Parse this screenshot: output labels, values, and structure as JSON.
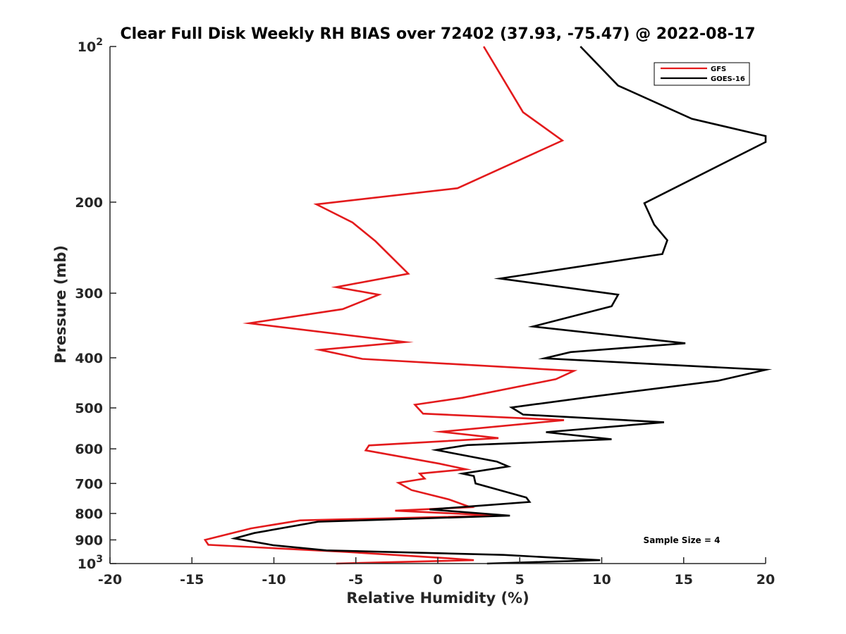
{
  "chart_data": {
    "type": "line",
    "title": "Clear Full Disk Weekly RH BIAS over 72402 (37.93, -75.47) @ 2022-08-17",
    "xlabel": "Relative Humidity (%)",
    "ylabel": "Pressure (mb)",
    "xlim": [
      -20,
      20
    ],
    "ylim": [
      100,
      1000
    ],
    "yscale": "log",
    "y_reversed": true,
    "x_ticks": [
      -20,
      -15,
      -10,
      -5,
      0,
      5,
      10,
      15,
      20
    ],
    "x_tick_labels": [
      "-20",
      "-15",
      "-10",
      "-5",
      "0",
      "5",
      "10",
      "15",
      "20"
    ],
    "y_ticks": [
      100,
      200,
      300,
      400,
      500,
      600,
      700,
      800,
      900,
      1000
    ],
    "y_tick_labels": [
      {
        "base": "10",
        "exp": "2"
      },
      {
        "base": "200",
        "exp": ""
      },
      {
        "base": "300",
        "exp": ""
      },
      {
        "base": "400",
        "exp": ""
      },
      {
        "base": "500",
        "exp": ""
      },
      {
        "base": "600",
        "exp": ""
      },
      {
        "base": "700",
        "exp": ""
      },
      {
        "base": "800",
        "exp": ""
      },
      {
        "base": "900",
        "exp": ""
      },
      {
        "base": "10",
        "exp": "3"
      }
    ],
    "grid": false,
    "legend_position": "top-right",
    "annotation": "Sample Size = 4",
    "series": [
      {
        "name": "GFS",
        "color": "#e31a1c",
        "points": [
          [
            2.8,
            100
          ],
          [
            5.2,
            134
          ],
          [
            7.6,
            152
          ],
          [
            1.2,
            188
          ],
          [
            -7.4,
            202
          ],
          [
            -5.2,
            219
          ],
          [
            -3.8,
            238
          ],
          [
            -1.8,
            275
          ],
          [
            -6.2,
            292
          ],
          [
            -3.6,
            302
          ],
          [
            -5.8,
            322
          ],
          [
            -11.5,
            343
          ],
          [
            -2.0,
            373
          ],
          [
            -7.2,
            386
          ],
          [
            -4.6,
            402
          ],
          [
            8.3,
            424
          ],
          [
            7.2,
            440
          ],
          [
            1.5,
            478
          ],
          [
            -1.4,
            493
          ],
          [
            -0.9,
            513
          ],
          [
            7.7,
            528
          ],
          [
            0.2,
            556
          ],
          [
            3.7,
            572
          ],
          [
            -4.2,
            591
          ],
          [
            -4.4,
            604
          ],
          [
            0.1,
            641
          ],
          [
            1.7,
            657
          ],
          [
            -1.1,
            670
          ],
          [
            -0.8,
            685
          ],
          [
            -2.4,
            698
          ],
          [
            -1.6,
            721
          ],
          [
            0.7,
            752
          ],
          [
            2.0,
            778
          ],
          [
            -2.6,
            790
          ],
          [
            3.7,
            808
          ],
          [
            -8.4,
            825
          ],
          [
            -11.4,
            855
          ],
          [
            -14.2,
            900
          ],
          [
            -14.0,
            920
          ],
          [
            -5.5,
            950
          ],
          [
            0.5,
            976
          ],
          [
            2.2,
            985
          ],
          [
            -6.2,
            1000
          ]
        ]
      },
      {
        "name": "GOES-16",
        "color": "#000000",
        "points": [
          [
            8.7,
            100
          ],
          [
            11.0,
            119
          ],
          [
            15.5,
            138
          ],
          [
            20.0,
            149
          ],
          [
            20.0,
            153
          ],
          [
            12.6,
            201
          ],
          [
            13.2,
            221
          ],
          [
            14.0,
            237
          ],
          [
            13.7,
            252
          ],
          [
            3.8,
            281
          ],
          [
            11.0,
            302
          ],
          [
            10.6,
            318
          ],
          [
            5.8,
            348
          ],
          [
            15.1,
            375
          ],
          [
            8.1,
            390
          ],
          [
            6.5,
            401
          ],
          [
            20.0,
            422
          ],
          [
            17.1,
            443
          ],
          [
            9.3,
            476
          ],
          [
            4.5,
            499
          ],
          [
            5.2,
            515
          ],
          [
            13.8,
            533
          ],
          [
            6.6,
            557
          ],
          [
            10.6,
            575
          ],
          [
            1.8,
            590
          ],
          [
            -0.1,
            603
          ],
          [
            3.6,
            635
          ],
          [
            4.3,
            649
          ],
          [
            1.5,
            670
          ],
          [
            2.2,
            677
          ],
          [
            2.3,
            700
          ],
          [
            3.5,
            717
          ],
          [
            5.4,
            745
          ],
          [
            5.6,
            760
          ],
          [
            -0.5,
            786
          ],
          [
            4.4,
            808
          ],
          [
            -7.3,
            830
          ],
          [
            -11.2,
            873
          ],
          [
            -12.4,
            894
          ],
          [
            -10.0,
            922
          ],
          [
            -6.8,
            943
          ],
          [
            4.0,
            962
          ],
          [
            9.9,
            985
          ],
          [
            3.0,
            1000
          ]
        ]
      }
    ]
  }
}
